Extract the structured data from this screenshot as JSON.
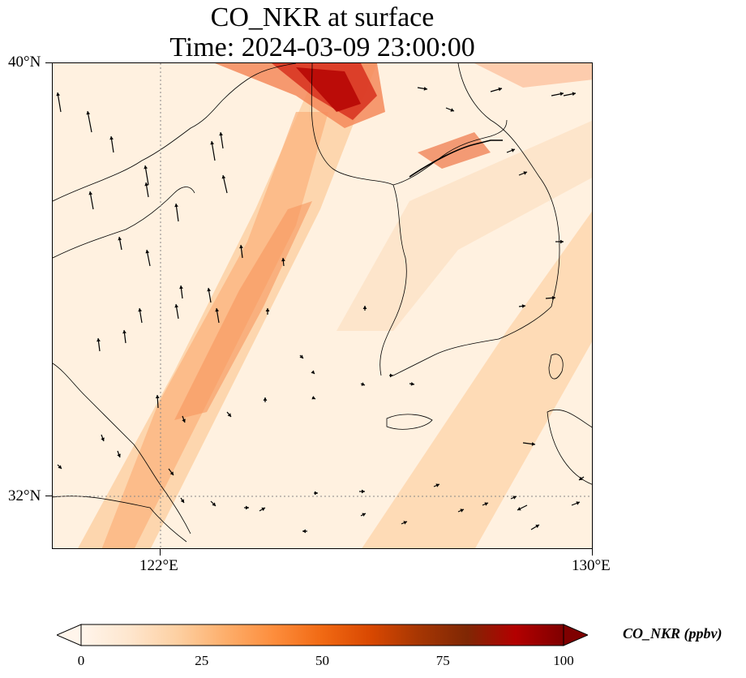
{
  "title": {
    "line1": "CO_NKR at surface",
    "line2": "Time: 2024-03-09 23:00:00"
  },
  "map": {
    "lon_range": [
      120,
      130
    ],
    "lat_range": [
      31,
      40
    ],
    "lat_ticks": [
      {
        "value": 40,
        "label": "40°N"
      },
      {
        "value": 32,
        "label": "32°N"
      }
    ],
    "lon_ticks": [
      {
        "value": 122,
        "label": "122°E"
      },
      {
        "value": 130,
        "label": "130°E"
      }
    ],
    "gridlines": "dotted",
    "features": [
      "coastlines",
      "wind-vectors",
      "filled-concentration-field"
    ]
  },
  "colorbar": {
    "label": "CO_NKR (ppbv)",
    "min": 0,
    "max": 100,
    "extend": "both",
    "ticks": [
      {
        "value": 0,
        "label": "0"
      },
      {
        "value": 25,
        "label": "25"
      },
      {
        "value": 50,
        "label": "50"
      },
      {
        "value": 75,
        "label": "75"
      },
      {
        "value": 100,
        "label": "100"
      }
    ],
    "colormap": [
      "#fff5eb",
      "#fee6ce",
      "#fdd0a2",
      "#fdae6b",
      "#fd8d3c",
      "#f16913",
      "#d94801",
      "#a63603",
      "#7f2704"
    ],
    "colormap_name": "OrRd"
  },
  "colors": {
    "low": "#fff5eb",
    "high": "#7f0000",
    "coastline": "#000000",
    "grid": "#888888"
  }
}
